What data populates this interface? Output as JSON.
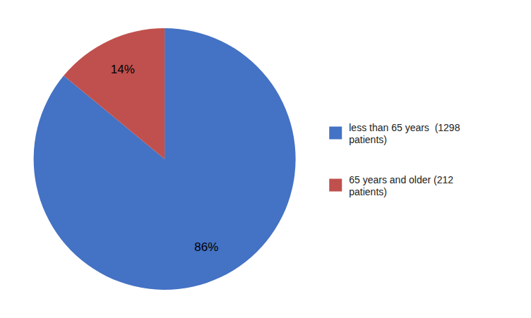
{
  "chart_data": {
    "type": "pie",
    "categories": [
      "less than 65 years  (1298\npatients)",
      "65 years and older (212\npatients)"
    ],
    "values": [
      86,
      14
    ],
    "value_labels": [
      "86%",
      "14%"
    ],
    "colors": [
      "#4472C4",
      "#C0504D"
    ],
    "data_labels": true,
    "legend": "right"
  }
}
